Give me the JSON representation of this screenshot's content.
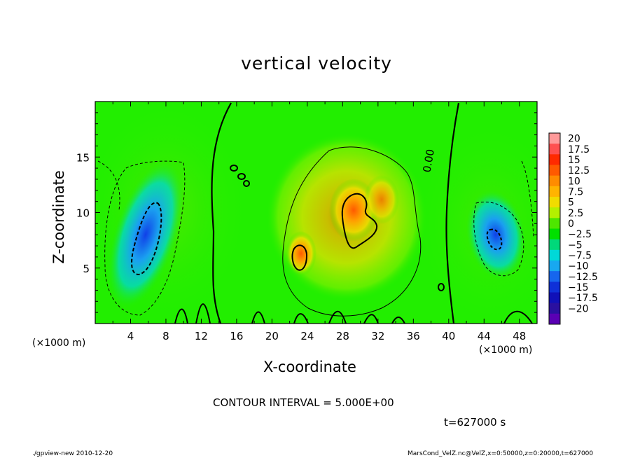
{
  "chart_data": {
    "type": "heatmap",
    "title": "vertical velocity",
    "xlabel": "X-coordinate",
    "ylabel": "Z-coordinate",
    "x_unit_label": "(×1000 m)",
    "x_unit_label_right": "(×1000 m)",
    "xlim": [
      0,
      50
    ],
    "ylim": [
      0,
      20
    ],
    "x_ticks": [
      4,
      8,
      12,
      16,
      20,
      24,
      28,
      32,
      36,
      40,
      44,
      48
    ],
    "y_ticks": [
      5,
      10,
      15
    ],
    "colorbar_labels": [
      "20",
      "17.5",
      "15",
      "12.5",
      "10",
      "7.5",
      "5",
      "2.5",
      "0",
      "−2.5",
      "−5",
      "−7.5",
      "−10",
      "−12.5",
      "−15",
      "−17.5",
      "−20"
    ],
    "colorbar_colors": [
      "#ff9a9a",
      "#ff5050",
      "#ff2a00",
      "#ff5a00",
      "#ff8c00",
      "#ffb400",
      "#f0dc00",
      "#b4f000",
      "#4ee600",
      "#00e000",
      "#00d87a",
      "#00d8d8",
      "#18a8f0",
      "#1666ee",
      "#0f30d8",
      "#1010b8",
      "#2a10a0",
      "#5a00b4"
    ],
    "contour_interval_text": "CONTOUR INTERVAL = 5.000E+00",
    "contour_label": "0.00",
    "background_color": "#22ee00",
    "features": [
      {
        "kind": "updraft",
        "x": 29.5,
        "z": 10.5,
        "peak": 12.5
      },
      {
        "kind": "updraft",
        "x": 23,
        "z": 6.3,
        "peak": 12
      },
      {
        "kind": "downdraft",
        "x": 6,
        "z": 8,
        "peak": -12.5
      },
      {
        "kind": "downdraft",
        "x": 45.5,
        "z": 7.7,
        "peak": -10
      }
    ]
  },
  "time_label": "t=627000 s",
  "footer_left": "./gpview-new   2010-12-20",
  "footer_right": "MarsCond_VelZ.nc@VelZ,x=0:50000,z=0:20000,t=627000"
}
